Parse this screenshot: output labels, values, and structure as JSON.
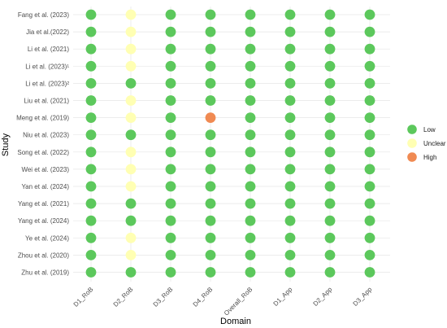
{
  "chart_data": {
    "type": "scatter",
    "xlabel": "Domain",
    "ylabel": "Study",
    "grid": true,
    "legend_position": "right",
    "domains": [
      "D1_RoB",
      "D2_RoB",
      "D3_RoB",
      "D4_RoB",
      "Overall_RoB",
      "D1_App",
      "D2_App",
      "D3_App"
    ],
    "studies": [
      "Fang et al. (2023)",
      "Jia et al.(2022)",
      "Li et al. (2021)",
      "Li et al. (2023)¹",
      "Li et al. (2023)²",
      "Liu et al. (2021)",
      "Meng et al. (2019)",
      "Niu et al. (2023)",
      "Song et al. (2022)",
      "Wei et al. (2023)",
      "Yan et al. (2024)",
      "Yang et al. (2021)",
      "Yang et al. (2024)",
      "Ye et al. (2024)",
      "Zhou et al. (2020)",
      "Zhu et al. (2019)"
    ],
    "ratings": [
      [
        "Low",
        "Unclear",
        "Low",
        "Low",
        "Low",
        "Low",
        "Low",
        "Low"
      ],
      [
        "Low",
        "Unclear",
        "Low",
        "Low",
        "Low",
        "Low",
        "Low",
        "Low"
      ],
      [
        "Low",
        "Unclear",
        "Low",
        "Low",
        "Low",
        "Low",
        "Low",
        "Low"
      ],
      [
        "Low",
        "Unclear",
        "Low",
        "Low",
        "Low",
        "Low",
        "Low",
        "Low"
      ],
      [
        "Low",
        "Low",
        "Low",
        "Low",
        "Low",
        "Low",
        "Low",
        "Low"
      ],
      [
        "Low",
        "Unclear",
        "Low",
        "Low",
        "Low",
        "Low",
        "Low",
        "Low"
      ],
      [
        "Low",
        "Unclear",
        "Low",
        "High",
        "Low",
        "Low",
        "Low",
        "Low"
      ],
      [
        "Low",
        "Low",
        "Low",
        "Low",
        "Low",
        "Low",
        "Low",
        "Low"
      ],
      [
        "Low",
        "Unclear",
        "Low",
        "Low",
        "Low",
        "Low",
        "Low",
        "Low"
      ],
      [
        "Low",
        "Unclear",
        "Low",
        "Low",
        "Low",
        "Low",
        "Low",
        "Low"
      ],
      [
        "Low",
        "Unclear",
        "Low",
        "Low",
        "Low",
        "Low",
        "Low",
        "Low"
      ],
      [
        "Low",
        "Low",
        "Low",
        "Low",
        "Low",
        "Low",
        "Low",
        "Low"
      ],
      [
        "Low",
        "Low",
        "Low",
        "Low",
        "Low",
        "Low",
        "Low",
        "Low"
      ],
      [
        "Low",
        "Unclear",
        "Low",
        "Low",
        "Low",
        "Low",
        "Low",
        "Low"
      ],
      [
        "Low",
        "Unclear",
        "Low",
        "Low",
        "Low",
        "Low",
        "Low",
        "Low"
      ],
      [
        "Low",
        "Low",
        "Low",
        "Low",
        "Low",
        "Low",
        "Low",
        "Low"
      ]
    ],
    "legend": [
      {
        "label": "Low",
        "color": "#5cc85c"
      },
      {
        "label": "Unclear",
        "color": "#ffffb3"
      },
      {
        "label": "High",
        "color": "#f08a52"
      }
    ]
  }
}
